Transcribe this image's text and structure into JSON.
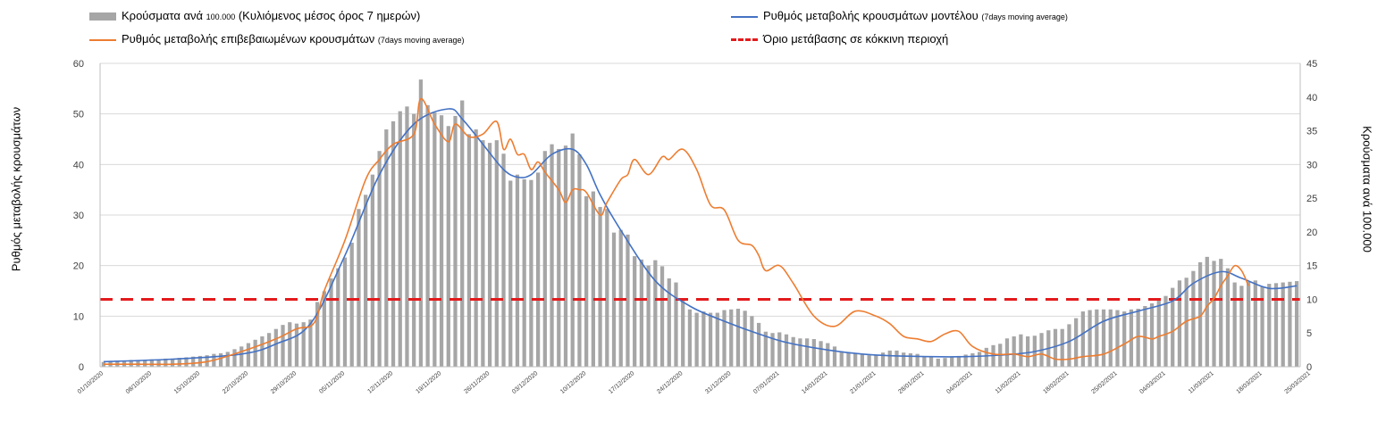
{
  "chart_data": {
    "type": "bar",
    "title": "",
    "legend": {
      "bars": {
        "label_main": "Κρούσματα ανά",
        "label_small": "100.000",
        "label_rest": "(Κυλιόμενος μέσος όρος 7 ημερών)"
      },
      "model": {
        "label_main": "Ρυθμός μεταβολής κρουσμάτων μοντέλου",
        "label_small": "(7days moving average)"
      },
      "observed": {
        "label_main": "Ρυθμός μεταβολής επιβεβαιωμένων κρουσμάτων",
        "label_small": "(7days moving average)"
      },
      "threshold": {
        "label_main": "Όριο μετάβασης σε κόκκινη περιοχή"
      }
    },
    "ylabel_left": "Ρυθμός μεταβολής κρουσμάτων",
    "ylabel_right": "Κρούσματα ανά 100.000",
    "ylim_left": [
      0,
      60
    ],
    "ylim_right": [
      0,
      45
    ],
    "yticks_left": [
      "0",
      "10",
      "20",
      "30",
      "40",
      "50",
      "60"
    ],
    "yticks_right": [
      "0",
      "5",
      "10",
      "15",
      "20",
      "25",
      "30",
      "35",
      "40",
      "45"
    ],
    "x_tick_labels": [
      "01/10/2020",
      "08/10/2020",
      "15/10/2020",
      "22/10/2020",
      "29/10/2020",
      "05/11/2020",
      "12/11/2020",
      "19/11/2020",
      "26/11/2020",
      "03/12/2020",
      "10/12/2020",
      "17/12/2020",
      "24/12/2020",
      "31/12/2020",
      "07/01/2021",
      "14/01/2021",
      "21/01/2021",
      "28/01/2021",
      "04/02/2021",
      "11/02/2021",
      "18/02/2021",
      "25/02/2021",
      "04/03/2021",
      "11/03/2021",
      "18/03/2021",
      "25/03/2021"
    ],
    "grid": "horizontal",
    "series": [
      {
        "name": "Κρούσματα ανά 100.000 (Κυλιόμενος μέσος όρος 7 ημερών)",
        "type": "bar",
        "axis": "right",
        "color": "#a6a6a6",
        "values": [
          0.7,
          0.8,
          0.8,
          0.9,
          1.0,
          1.0,
          1.0,
          1.1,
          1.1,
          1.2,
          1.2,
          1.3,
          1.4,
          1.5,
          1.6,
          1.7,
          1.9,
          2.0,
          2.2,
          2.6,
          3.0,
          3.5,
          4.0,
          4.5,
          5.0,
          5.6,
          6.2,
          6.6,
          6.4,
          6.6,
          7.0,
          9.6,
          11.2,
          13.1,
          14.6,
          16.2,
          18.4,
          23.4,
          25.5,
          28.5,
          32.0,
          35.2,
          36.4,
          37.9,
          38.6,
          37.5,
          42.6,
          38.8,
          37.7,
          37.3,
          35.7,
          37.2,
          39.5,
          34.5,
          35.2,
          33.6,
          33.2,
          33.6,
          31.6,
          27.6,
          28.5,
          27.8,
          27.7,
          28.8,
          32.0,
          33.0,
          32.3,
          32.8,
          34.6,
          31.5,
          25.3,
          26.0,
          23.7,
          23.4,
          19.9,
          20.3,
          19.6,
          16.4,
          15.9,
          15.0,
          15.8,
          14.9,
          13.1,
          12.5,
          10.1,
          8.5,
          8.0,
          8.2,
          8.0,
          8.0,
          8.4,
          8.5,
          8.6,
          8.3,
          7.5,
          6.5,
          5.2,
          5.0,
          5.1,
          4.8,
          4.4,
          4.2,
          4.2,
          4.1,
          3.8,
          3.5,
          3.0,
          2.3,
          2.1,
          1.9,
          1.8,
          1.7,
          1.8,
          2.1,
          2.4,
          2.4,
          2.1,
          2.0,
          1.9,
          1.5,
          1.4,
          1.2,
          1.3,
          1.4,
          1.6,
          1.8,
          2.0,
          2.2,
          2.8,
          3.2,
          3.4,
          4.2,
          4.5,
          4.8,
          4.5,
          4.6,
          5.0,
          5.4,
          5.6,
          5.6,
          6.3,
          7.2,
          8.2,
          8.4,
          8.5,
          8.5,
          8.5,
          8.4,
          8.2,
          8.5,
          8.6,
          9.0,
          9.4,
          9.9,
          10.5,
          11.7,
          12.8,
          13.2,
          14.2,
          15.5,
          16.3,
          15.7,
          16.0,
          14.6,
          12.5,
          12.0,
          12.6,
          12.8,
          11.9,
          12.3,
          12.4,
          12.5,
          12.6,
          12.7
        ]
      },
      {
        "name": "Ρυθμός μεταβολής κρουσμάτων μοντέλου (7days moving average)",
        "type": "line",
        "axis": "left",
        "color": "#4472c4",
        "x_index": [
          0,
          10,
          20,
          25,
          30,
          35,
          40,
          45,
          50,
          52,
          55,
          58,
          60,
          62,
          65,
          68,
          70,
          72,
          75,
          80,
          85,
          90,
          95,
          100,
          110,
          120,
          125,
          130,
          135,
          140,
          145,
          150,
          155,
          158,
          162,
          165,
          169,
          173
        ],
        "values": [
          1.0,
          1.5,
          2.5,
          4.5,
          8.5,
          22,
          38,
          48,
          51,
          49,
          44,
          39,
          37.5,
          38,
          42,
          43,
          40,
          34,
          27,
          17,
          12,
          9,
          6.5,
          4.5,
          2.5,
          2.0,
          2.0,
          2.3,
          3.0,
          5.0,
          9.0,
          11.0,
          13.0,
          16.5,
          18.8,
          17.5,
          15.5,
          16.0
        ]
      },
      {
        "name": "Ρυθμός μεταβολής επιβεβαιωμένων κρουσμάτων (7days moving average)",
        "type": "line",
        "axis": "left",
        "color": "#ed7d31",
        "x_index": [
          0,
          5,
          10,
          15,
          20,
          25,
          28,
          30,
          31,
          32,
          35,
          38,
          40,
          42,
          45,
          46,
          48,
          50,
          51,
          53,
          55,
          57,
          58,
          59,
          60,
          61,
          62,
          63,
          64,
          66,
          67,
          68,
          69,
          70,
          72,
          73,
          75,
          76,
          77,
          79,
          81,
          82,
          84,
          86,
          88,
          90,
          92,
          94,
          95,
          96,
          98,
          100,
          103,
          106,
          109,
          112,
          114,
          116,
          118,
          120,
          122,
          124,
          126,
          129,
          132,
          134,
          136,
          138,
          140,
          142,
          145,
          148,
          150,
          152,
          153,
          155,
          157,
          159,
          160,
          161,
          162,
          163,
          164,
          165,
          166
        ],
        "values": [
          0.5,
          0.5,
          0.5,
          1.0,
          3.0,
          5.5,
          7.5,
          8.0,
          10.0,
          15.0,
          25.0,
          37.0,
          41.0,
          44.0,
          46.0,
          53.0,
          48.0,
          44.5,
          48.0,
          45.5,
          46.0,
          48.5,
          43.0,
          45.0,
          42.0,
          42.0,
          39.0,
          40.5,
          38.5,
          35.0,
          32.5,
          35.0,
          35.0,
          34.5,
          30.0,
          32.5,
          37.0,
          38.0,
          41.0,
          38.0,
          41.5,
          41.0,
          43.0,
          39.0,
          32.0,
          31.0,
          25.0,
          24.0,
          22.0,
          19.0,
          20.0,
          16.5,
          10.0,
          8.0,
          11.0,
          10.0,
          8.5,
          6.0,
          5.5,
          5.0,
          6.5,
          7.0,
          4.0,
          2.5,
          2.5,
          2.0,
          2.5,
          1.5,
          1.5,
          2.0,
          2.5,
          4.5,
          6.0,
          5.5,
          6.0,
          7.0,
          9.0,
          10.0,
          12.0,
          13.5,
          16.0,
          18.0,
          20.0,
          19.0,
          16.0
        ]
      },
      {
        "name": "Όριο μετάβασης σε κόκκινη περιοχή",
        "type": "line",
        "style": "dashed",
        "axis": "right",
        "color": "#e31a1c",
        "value": 10
      }
    ]
  }
}
